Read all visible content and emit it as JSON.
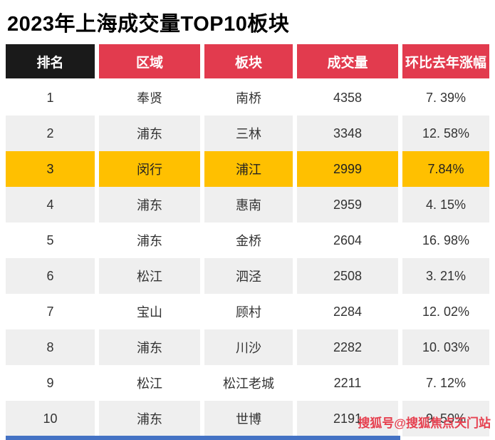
{
  "chart_data": {
    "type": "table",
    "title": "2023年上海成交量TOP10板块",
    "columns": [
      "排名",
      "区域",
      "板块",
      "成交量",
      "环比去年涨幅"
    ],
    "rows": [
      {
        "rank": "1",
        "region": "奉贤",
        "plate": "南桥",
        "volume": "4358",
        "yoy_change": "7. 39%"
      },
      {
        "rank": "2",
        "region": "浦东",
        "plate": "三林",
        "volume": "3348",
        "yoy_change": "12. 58%"
      },
      {
        "rank": "3",
        "region": "闵行",
        "plate": "浦江",
        "volume": "2999",
        "yoy_change": "7.84%"
      },
      {
        "rank": "4",
        "region": "浦东",
        "plate": "惠南",
        "volume": "2959",
        "yoy_change": "4. 15%"
      },
      {
        "rank": "5",
        "region": "浦东",
        "plate": "金桥",
        "volume": "2604",
        "yoy_change": "16. 98%"
      },
      {
        "rank": "6",
        "region": "松江",
        "plate": "泗泾",
        "volume": "2508",
        "yoy_change": "3. 21%"
      },
      {
        "rank": "7",
        "region": "宝山",
        "plate": "顾村",
        "volume": "2284",
        "yoy_change": "12. 02%"
      },
      {
        "rank": "8",
        "region": "浦东",
        "plate": "川沙",
        "volume": "2282",
        "yoy_change": "10. 03%"
      },
      {
        "rank": "9",
        "region": "松江",
        "plate": "松江老城",
        "volume": "2211",
        "yoy_change": "7. 12%"
      },
      {
        "rank": "10",
        "region": "浦东",
        "plate": "世博",
        "volume": "2191",
        "yoy_change": "9. 50%"
      }
    ],
    "highlight_row_index": 2,
    "layout": {
      "banding": "even ranks shaded",
      "legend": "none",
      "grid": "off"
    }
  },
  "watermark": "搜狐号@搜狐焦点天门站",
  "colors": {
    "header_red": "#E23B4E",
    "header_black": "#1A1A1A",
    "highlight_gold": "#FFC000",
    "row_alt": "#EFEFEF",
    "accent_blue": "#4472C4",
    "watermark_red": "#E6404F"
  }
}
